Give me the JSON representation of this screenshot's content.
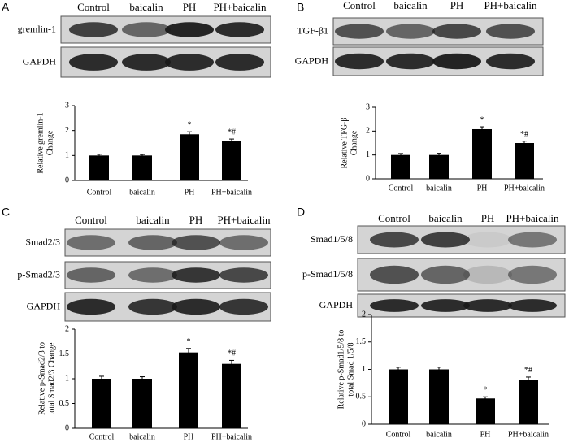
{
  "blots": [
    {
      "panel": "A",
      "columns": [
        "Control",
        "baicalin",
        "PH",
        "PH+baicalin"
      ],
      "rows": [
        "gremlin-1",
        "GAPDH"
      ]
    },
    {
      "panel": "B",
      "columns": [
        "Control",
        "baicalin",
        "PH",
        "PH+baicalin"
      ],
      "rows": [
        "TGF-β1",
        "GAPDH"
      ]
    },
    {
      "panel": "C",
      "columns": [
        "Control",
        "baicalin",
        "PH",
        "PH+baicalin"
      ],
      "rows": [
        "Smad2/3",
        "p-Smad2/3",
        "GAPDH"
      ]
    },
    {
      "panel": "D",
      "columns": [
        "Control",
        "baicalin",
        "PH",
        "PH+baicalin"
      ],
      "rows": [
        "Smad1/5/8",
        "p-Smad1/5/8",
        "GAPDH"
      ]
    }
  ],
  "chart_data": [
    {
      "type": "bar",
      "y_label": [
        "Relative gremlin-1",
        "Change"
      ],
      "categories": [
        "Control",
        "baicalin",
        "PH",
        "PH+baicalin"
      ],
      "values": [
        1.0,
        1.0,
        1.85,
        1.58
      ],
      "errors": [
        0.05,
        0.04,
        0.1,
        0.08
      ],
      "annotations": [
        null,
        null,
        "*",
        "*#"
      ],
      "color": "#000000",
      "ylim": [
        0,
        3
      ],
      "yticks": [
        0,
        1,
        2,
        3
      ]
    },
    {
      "type": "bar",
      "y_label": [
        "Relative TFG-β",
        "Change"
      ],
      "categories": [
        "Control",
        "baicalin",
        "PH",
        "PH+baicalin"
      ],
      "values": [
        1.0,
        1.0,
        2.08,
        1.5
      ],
      "errors": [
        0.06,
        0.07,
        0.1,
        0.08
      ],
      "annotations": [
        null,
        null,
        "*",
        "*#"
      ],
      "color": "#000000",
      "ylim": [
        0,
        3
      ],
      "yticks": [
        0,
        1,
        2,
        3
      ]
    },
    {
      "type": "bar",
      "y_label": [
        "Relative p-Smad2/3 to",
        "total Smad2/3 Change"
      ],
      "categories": [
        "Control",
        "baicalin",
        "PH",
        "PH+baicalin"
      ],
      "values": [
        1.0,
        1.0,
        1.53,
        1.3
      ],
      "errors": [
        0.05,
        0.04,
        0.08,
        0.07
      ],
      "annotations": [
        null,
        null,
        "*",
        "*#"
      ],
      "color": "#000000",
      "ylim": [
        0,
        2
      ],
      "yticks": [
        0,
        0.5,
        1,
        1.5,
        2
      ]
    },
    {
      "type": "bar",
      "y_label": [
        "Relative p-Smad1/5/8 to",
        "total Smad 1/5/8"
      ],
      "categories": [
        "Control",
        "baicalin",
        "PH",
        "PH+baicalin"
      ],
      "values": [
        1.0,
        1.0,
        0.47,
        0.81
      ],
      "errors": [
        0.04,
        0.04,
        0.03,
        0.05
      ],
      "annotations": [
        null,
        null,
        "*",
        "*#"
      ],
      "color": "#000000",
      "ylim": [
        0,
        2
      ],
      "yticks": [
        0,
        0.5,
        1,
        1.5,
        2
      ]
    }
  ]
}
